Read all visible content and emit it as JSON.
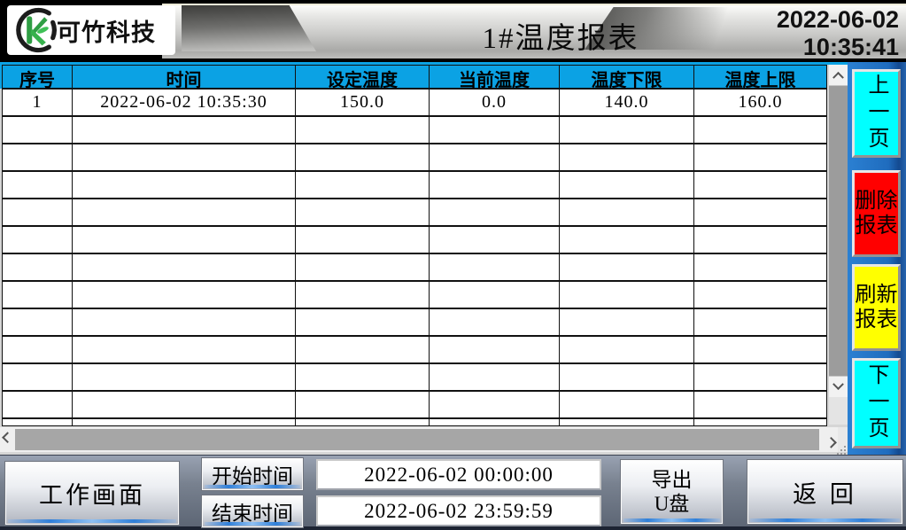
{
  "header": {
    "logo_text": "可竹科技",
    "title": "1#温度报表",
    "date": "2022-06-02",
    "time": "10:35:41"
  },
  "table": {
    "columns": [
      "序号",
      "时间",
      "设定温度",
      "当前温度",
      "温度下限",
      "温度上限"
    ],
    "rows": [
      [
        "1",
        "2022-06-02 10:35:30",
        "150.0",
        "0.0",
        "140.0",
        "160.0"
      ]
    ],
    "empty_rows": 12
  },
  "side_panel": {
    "prev_page": "上一页",
    "delete_report": "删除报表",
    "refresh_report": "刷新报表",
    "next_page": "下一页"
  },
  "bottom_bar": {
    "work_screen": "工作画面",
    "start_time_label": "开始时间",
    "end_time_label": "结束时间",
    "start_time_value": "2022-06-02 00:00:00",
    "end_time_value": "2022-06-02 23:59:59",
    "export_usb": "导出\nU盘",
    "back": "返 回"
  },
  "icons": {
    "scrollbar": [
      "chevron-up-icon",
      "chevron-down-icon",
      "chevron-left-icon",
      "chevron-right-icon"
    ],
    "logo": "bamboo-k-icon",
    "resize_grip": "resize-grip-icon"
  },
  "colors": {
    "table_header_blue": "#0ba2e4",
    "panel_blue": "#1f6cbe",
    "page_button_cyan": "#00ffff",
    "delete_red": "#ff0000",
    "refresh_yellow": "#ffff00",
    "topbar_black": "#000000",
    "accent_stripe_blue": "#2f7fd9"
  }
}
